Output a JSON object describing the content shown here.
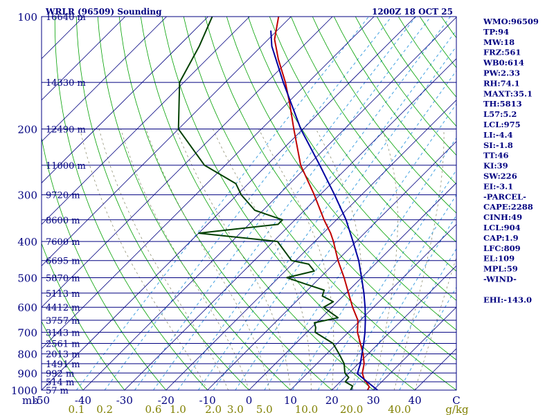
{
  "header": {
    "station": "WRLR (96509) Sounding",
    "time": "1200Z 18 OCT 25"
  },
  "indices": [
    "WMO:96509",
    "TP:94",
    "MW:18",
    "FRZ:561",
    "WB0:614",
    "PW:2.33",
    "RH:74.1",
    "MAXT:35.1",
    "TH:5813",
    "L57:5.2",
    "LCL:975",
    "LI:-4.4",
    "SI:-1.8",
    "TT:46",
    "KI:39",
    "SW:226",
    "EI:-3.1",
    "-PARCEL-",
    "CAPE:2288",
    "CINH:49",
    "LCL:904",
    "CAP:1.9",
    "LFC:809",
    "EL:109",
    "MPL:59",
    "-WIND-",
    "",
    "EHI:-143.0"
  ],
  "colors": {
    "background": "#ffffff",
    "isobar": "#000080",
    "isotherm": "#000080",
    "dry_adiabat": "#00a000",
    "moist_adiabat": "#808060",
    "mixing_ratio": "#40a0e0",
    "temperature": "#c00000",
    "dewpoint": "#004000",
    "parcel": "#0000a0",
    "text": "#000080",
    "mixing_label": "#808000"
  },
  "chart_data": {
    "type": "line",
    "title": "WRLR (96509) Sounding",
    "subtitle": "1200Z 18 OCT 25",
    "xlabel": "°C",
    "ylabel": "mb",
    "xlim": [
      -50,
      50
    ],
    "ylim": [
      1000,
      100
    ],
    "x_ticks": [
      -50,
      -40,
      -30,
      -20,
      -10,
      0,
      10,
      20,
      30,
      40
    ],
    "x_tick_labels": [
      "-50",
      "-40",
      "-30",
      "-20",
      "-10",
      "0",
      "10",
      "20",
      "30",
      "40",
      "C"
    ],
    "x_unit": "C",
    "y_tick_labels": [
      {
        "p": 100,
        "label": "100"
      },
      {
        "p": 200,
        "label": "200"
      },
      {
        "p": 300,
        "label": "300"
      },
      {
        "p": 400,
        "label": "400"
      },
      {
        "p": 500,
        "label": "500"
      },
      {
        "p": 600,
        "label": "600"
      },
      {
        "p": 700,
        "label": "700"
      },
      {
        "p": 800,
        "label": "800"
      },
      {
        "p": 900,
        "label": "900"
      },
      {
        "p": 1000,
        "label": "1000"
      }
    ],
    "y_unit": "mb",
    "height_labels": [
      {
        "p": 100,
        "label": "16640 m"
      },
      {
        "p": 150,
        "label": "14330 m"
      },
      {
        "p": 200,
        "label": "12490 m"
      },
      {
        "p": 250,
        "label": "11000 m"
      },
      {
        "p": 300,
        "label": "9720 m"
      },
      {
        "p": 350,
        "label": "8600 m"
      },
      {
        "p": 400,
        "label": "7600 m"
      },
      {
        "p": 450,
        "label": "6695 m"
      },
      {
        "p": 500,
        "label": "5870 m"
      },
      {
        "p": 550,
        "label": "5113 m"
      },
      {
        "p": 600,
        "label": "4412 m"
      },
      {
        "p": 650,
        "label": "3757 m"
      },
      {
        "p": 700,
        "label": "3143 m"
      },
      {
        "p": 750,
        "label": "2561 m"
      },
      {
        "p": 800,
        "label": "2013 m"
      },
      {
        "p": 850,
        "label": "1491 m"
      },
      {
        "p": 900,
        "label": "992 m"
      },
      {
        "p": 950,
        "label": "514 m"
      },
      {
        "p": 1000,
        "label": "57 m"
      }
    ],
    "mixing_ratio_labels": [
      {
        "w": 0.1,
        "label": "0.1"
      },
      {
        "w": 0.2,
        "label": "0.2"
      },
      {
        "w": 0.6,
        "label": "0.6"
      },
      {
        "w": 1.0,
        "label": "1.0"
      },
      {
        "w": 2.0,
        "label": "2.0"
      },
      {
        "w": 3.0,
        "label": "3.0"
      },
      {
        "w": 5.0,
        "label": "5.0"
      },
      {
        "w": 10.0,
        "label": "10.0"
      },
      {
        "w": 20.0,
        "label": "20.0"
      },
      {
        "w": 40.0,
        "label": "40.0"
      }
    ],
    "mixing_ratio_unit": "g/kg",
    "series": [
      {
        "name": "Temperature",
        "points": [
          [
            1000,
            28.6
          ],
          [
            980,
            28.2
          ],
          [
            960,
            26.9
          ],
          [
            940,
            25.4
          ],
          [
            925,
            24.6
          ],
          [
            900,
            23.2
          ],
          [
            850,
            21.4
          ],
          [
            800,
            18.8
          ],
          [
            750,
            15.6
          ],
          [
            700,
            12.2
          ],
          [
            650,
            9.4
          ],
          [
            600,
            5.0
          ],
          [
            550,
            0.6
          ],
          [
            500,
            -4.2
          ],
          [
            450,
            -9.8
          ],
          [
            400,
            -15.5
          ],
          [
            380,
            -18.2
          ],
          [
            350,
            -23.0
          ],
          [
            300,
            -31.4
          ],
          [
            250,
            -41.8
          ],
          [
            200,
            -52.2
          ],
          [
            170,
            -59.6
          ],
          [
            150,
            -65.5
          ],
          [
            130,
            -72.8
          ],
          [
            115,
            -78.5
          ],
          [
            100,
            -83.0
          ]
        ]
      },
      {
        "name": "Dewpoint",
        "points": [
          [
            1000,
            24.5
          ],
          [
            975,
            24.0
          ],
          [
            950,
            21.2
          ],
          [
            925,
            21.0
          ],
          [
            900,
            19.0
          ],
          [
            850,
            16.6
          ],
          [
            800,
            13.0
          ],
          [
            750,
            9.0
          ],
          [
            700,
            2.0
          ],
          [
            680,
            1.0
          ],
          [
            660,
            -0.5
          ],
          [
            640,
            4.0
          ],
          [
            620,
            1.0
          ],
          [
            600,
            -2.0
          ],
          [
            580,
            -1.0
          ],
          [
            560,
            -5.0
          ],
          [
            540,
            -6.0
          ],
          [
            520,
            -12.0
          ],
          [
            500,
            -18.0
          ],
          [
            480,
            -13.0
          ],
          [
            460,
            -16.0
          ],
          [
            450,
            -21.0
          ],
          [
            400,
            -29.0
          ],
          [
            380,
            -50.0
          ],
          [
            360,
            -33.0
          ],
          [
            350,
            -33.0
          ],
          [
            330,
            -42.0
          ],
          [
            300,
            -49.0
          ],
          [
            280,
            -53.0
          ],
          [
            250,
            -65.0
          ],
          [
            200,
            -80.0
          ],
          [
            150,
            -91.0
          ],
          [
            120,
            -95.0
          ],
          [
            100,
            -99.0
          ]
        ]
      },
      {
        "name": "Parcel",
        "points": [
          [
            1000,
            31.0
          ],
          [
            950,
            26.5
          ],
          [
            904,
            22.2
          ],
          [
            850,
            20.5
          ],
          [
            800,
            18.5
          ],
          [
            750,
            16.4
          ],
          [
            700,
            14.0
          ],
          [
            650,
            11.2
          ],
          [
            600,
            8.0
          ],
          [
            550,
            4.3
          ],
          [
            500,
            0.0
          ],
          [
            450,
            -4.8
          ],
          [
            400,
            -10.8
          ],
          [
            350,
            -17.7
          ],
          [
            300,
            -26.5
          ],
          [
            250,
            -37.2
          ],
          [
            200,
            -50.5
          ],
          [
            150,
            -66.0
          ],
          [
            120,
            -77.5
          ],
          [
            109,
            -81.5
          ]
        ]
      }
    ],
    "grid": true
  }
}
